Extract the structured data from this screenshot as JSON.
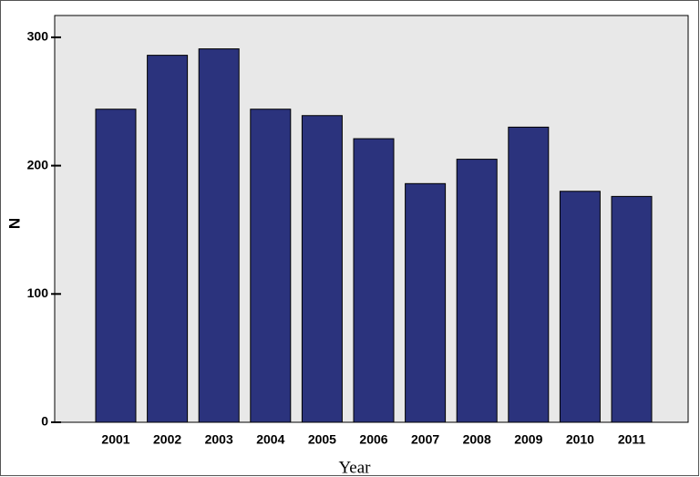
{
  "chart_data": {
    "type": "bar",
    "x_label": "Year",
    "y_label": "N",
    "categories": [
      "2001",
      "2002",
      "2003",
      "2004",
      "2005",
      "2006",
      "2007",
      "2008",
      "2009",
      "2010",
      "2011"
    ],
    "values": [
      244,
      286,
      291,
      244,
      239,
      221,
      186,
      205,
      230,
      180,
      176
    ],
    "color": "#2b337d",
    "ylim": [
      0,
      317
    ],
    "yticks": [
      0,
      100,
      200,
      300
    ],
    "grid": false
  }
}
